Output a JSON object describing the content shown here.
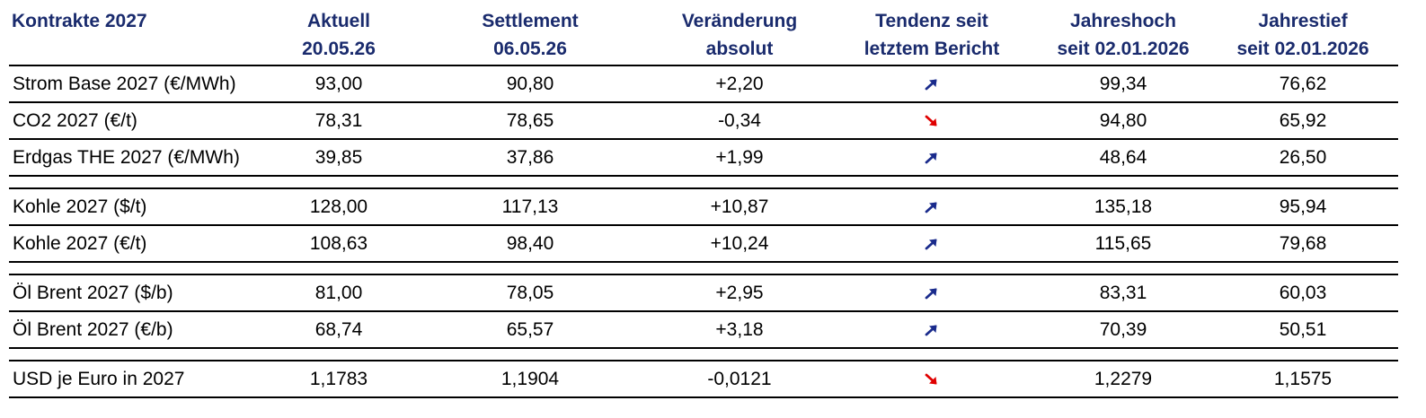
{
  "header": {
    "col1": [
      "Kontrakte 2027"
    ],
    "col2": [
      "Aktuell",
      "20.05.26"
    ],
    "col3": [
      "Settlement",
      "06.05.26"
    ],
    "col4": [
      "Veränderung",
      "absolut"
    ],
    "col5": [
      "Tendenz seit",
      "letztem Bericht"
    ],
    "col6": [
      "Jahreshoch",
      "seit 02.01.2026"
    ],
    "col7": [
      "Jahrestief",
      "seit 02.01.2026"
    ]
  },
  "colors": {
    "header_text": "#1a2b6d",
    "arrow_up": "#1a2b8c",
    "arrow_down": "#e00000"
  },
  "rows": [
    {
      "name": "Strom Base 2027 (€/MWh)",
      "aktuell": "93,00",
      "settlement": "90,80",
      "change": "+2,20",
      "trend": "up",
      "high": "99,34",
      "low": "76,62"
    },
    {
      "name": "CO2 2027 (€/t)",
      "aktuell": "78,31",
      "settlement": "78,65",
      "change": "-0,34",
      "trend": "down",
      "high": "94,80",
      "low": "65,92"
    },
    {
      "name": "Erdgas THE 2027 (€/MWh)",
      "aktuell": "39,85",
      "settlement": "37,86",
      "change": "+1,99",
      "trend": "up",
      "high": "48,64",
      "low": "26,50"
    },
    {
      "name": "Kohle 2027 ($/t)",
      "aktuell": "128,00",
      "settlement": "117,13",
      "change": "+10,87",
      "trend": "up",
      "high": "135,18",
      "low": "95,94"
    },
    {
      "name": "Kohle 2027 (€/t)",
      "aktuell": "108,63",
      "settlement": "98,40",
      "change": "+10,24",
      "trend": "up",
      "high": "115,65",
      "low": "79,68"
    },
    {
      "name": "Öl Brent 2027 ($/b)",
      "aktuell": "81,00",
      "settlement": "78,05",
      "change": "+2,95",
      "trend": "up",
      "high": "83,31",
      "low": "60,03"
    },
    {
      "name": "Öl Brent 2027 (€/b)",
      "aktuell": "68,74",
      "settlement": "65,57",
      "change": "+3,18",
      "trend": "up",
      "high": "70,39",
      "low": "50,51"
    },
    {
      "name": "USD je Euro in 2027",
      "aktuell": "1,1783",
      "settlement": "1,1904",
      "change": "-0,0121",
      "trend": "down",
      "high": "1,2279",
      "low": "1,1575"
    }
  ]
}
